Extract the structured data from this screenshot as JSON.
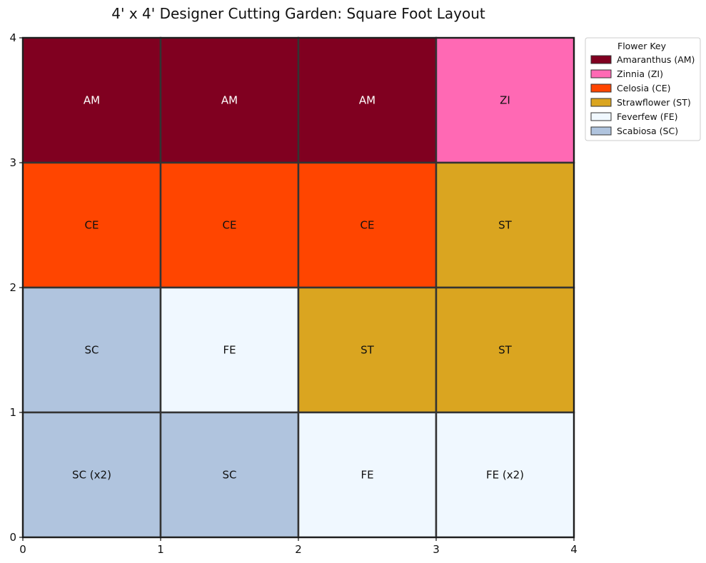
{
  "chart_data": {
    "type": "heatmap",
    "title": "4' x 4' Designer Cutting Garden: Square Foot Layout",
    "xlabel": "",
    "ylabel": "",
    "xlim": [
      0,
      4
    ],
    "ylim": [
      0,
      4
    ],
    "x_ticks": [
      "0",
      "1",
      "2",
      "3",
      "4"
    ],
    "y_ticks": [
      "0",
      "1",
      "2",
      "3",
      "4"
    ],
    "grid": false,
    "legend_position": "upper-right-outside",
    "legend": {
      "title": "Flower Key",
      "entries": [
        {
          "code": "AM",
          "label": "Amaranthus (AM)",
          "color": "#800020"
        },
        {
          "code": "ZI",
          "label": "Zinnia (ZI)",
          "color": "#ff69b4"
        },
        {
          "code": "CE",
          "label": "Celosia (CE)",
          "color": "#ff4500"
        },
        {
          "code": "ST",
          "label": "Strawflower (ST)",
          "color": "#daa520"
        },
        {
          "code": "FE",
          "label": "Feverfew (FE)",
          "color": "#f0f8ff"
        },
        {
          "code": "SC",
          "label": "Scabiosa (SC)",
          "color": "#b0c4de"
        }
      ]
    },
    "cells": [
      {
        "x": 0,
        "y": 3,
        "code": "AM",
        "label": "AM"
      },
      {
        "x": 1,
        "y": 3,
        "code": "AM",
        "label": "AM"
      },
      {
        "x": 2,
        "y": 3,
        "code": "AM",
        "label": "AM"
      },
      {
        "x": 3,
        "y": 3,
        "code": "ZI",
        "label": "ZI"
      },
      {
        "x": 0,
        "y": 2,
        "code": "CE",
        "label": "CE"
      },
      {
        "x": 1,
        "y": 2,
        "code": "CE",
        "label": "CE"
      },
      {
        "x": 2,
        "y": 2,
        "code": "CE",
        "label": "CE"
      },
      {
        "x": 3,
        "y": 2,
        "code": "ST",
        "label": "ST"
      },
      {
        "x": 0,
        "y": 1,
        "code": "SC",
        "label": "SC"
      },
      {
        "x": 1,
        "y": 1,
        "code": "FE",
        "label": "FE"
      },
      {
        "x": 2,
        "y": 1,
        "code": "ST",
        "label": "ST"
      },
      {
        "x": 3,
        "y": 1,
        "code": "ST",
        "label": "ST"
      },
      {
        "x": 0,
        "y": 0,
        "code": "SC",
        "label": "SC (x2)"
      },
      {
        "x": 1,
        "y": 0,
        "code": "SC",
        "label": "SC"
      },
      {
        "x": 2,
        "y": 0,
        "code": "FE",
        "label": "FE"
      },
      {
        "x": 3,
        "y": 0,
        "code": "FE",
        "label": "FE (x2)"
      }
    ],
    "label_colors": {
      "dark_background": "#ffffff",
      "light_background": "#111111"
    }
  }
}
